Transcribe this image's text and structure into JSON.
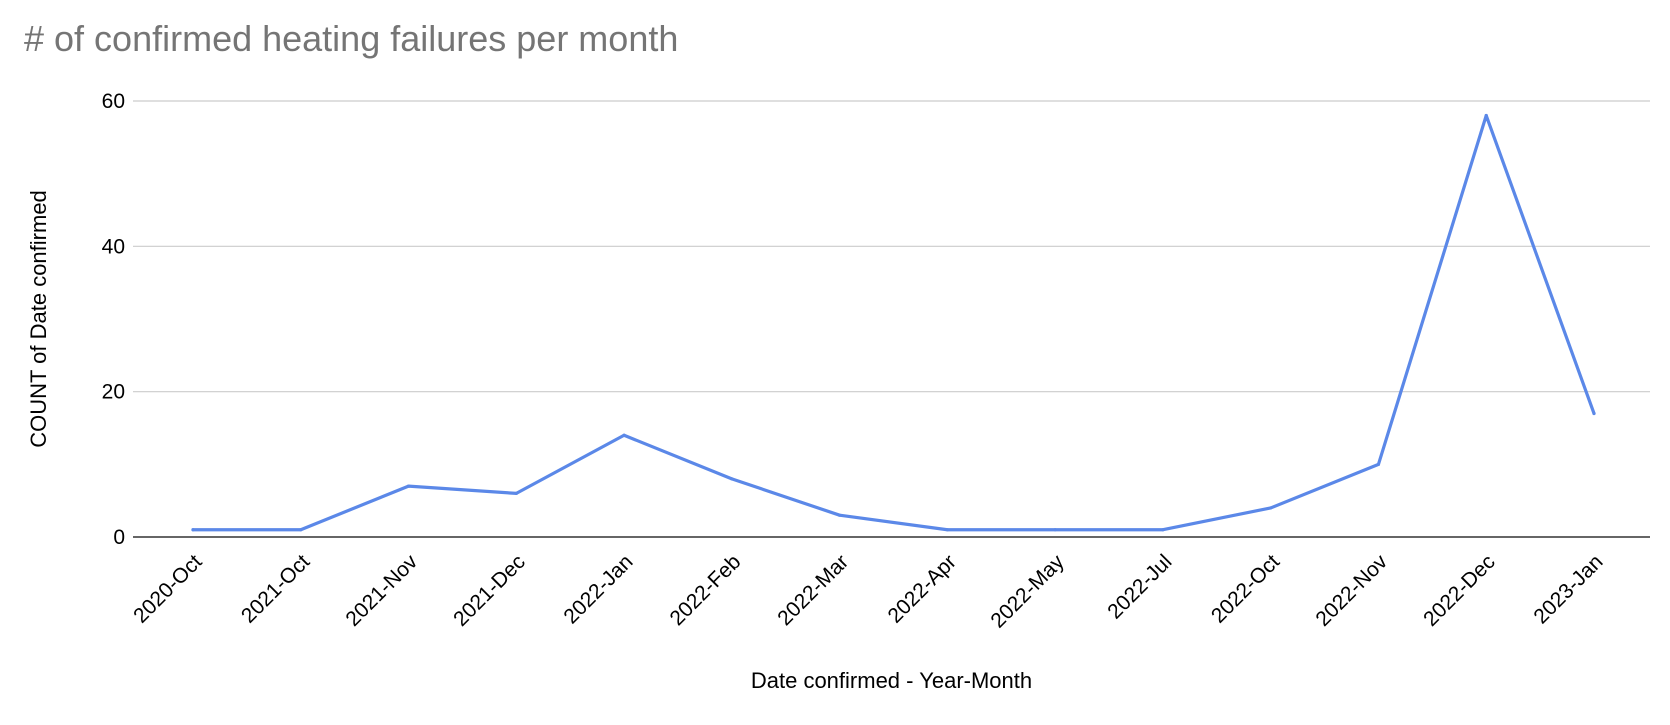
{
  "chart_data": {
    "type": "line",
    "title": "# of confirmed heating failures per month",
    "xlabel": "Date confirmed - Year-Month",
    "ylabel": "COUNT of Date confirmed",
    "ylim": [
      0,
      60
    ],
    "yticks": [
      0,
      20,
      40,
      60
    ],
    "grid": true,
    "legend": "none",
    "categories": [
      "2020-Oct",
      "2021-Oct",
      "2021-Nov",
      "2021-Dec",
      "2022-Jan",
      "2022-Feb",
      "2022-Mar",
      "2022-Apr",
      "2022-May",
      "2022-Jul",
      "2022-Oct",
      "2022-Nov",
      "2022-Dec",
      "2023-Jan"
    ],
    "series": [
      {
        "values": [
          1,
          1,
          7,
          6,
          14,
          8,
          3,
          1,
          1,
          1,
          4,
          10,
          58,
          17
        ],
        "color": "#5b88e8"
      }
    ]
  }
}
